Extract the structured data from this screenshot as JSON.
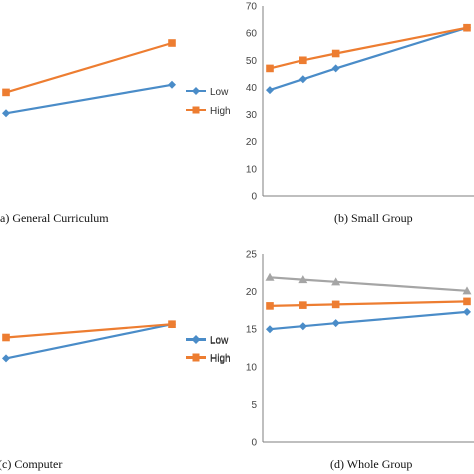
{
  "colors": {
    "low": "#4a8cc8",
    "high": "#ed7d31",
    "gray": "#a5a5a5",
    "axis": "#7f7f7f"
  },
  "chart_data": [
    {
      "id": "a",
      "type": "line",
      "caption": "(a)  General Curriculum",
      "x": [
        0,
        1
      ],
      "series": [
        {
          "key": "low",
          "name": "",
          "marker": "diamond",
          "values": [
            43,
            58
          ]
        },
        {
          "key": "high",
          "name": "",
          "marker": "square",
          "values": [
            54,
            80
          ]
        }
      ],
      "ylim": [
        0,
        100
      ],
      "legend": {
        "placement": "right",
        "entries": [
          "Low",
          "High"
        ]
      }
    },
    {
      "id": "b",
      "type": "line",
      "caption": "(b)  Small Group",
      "x": [
        1,
        2,
        3,
        7
      ],
      "series": [
        {
          "key": "low",
          "name": "Low",
          "marker": "diamond",
          "values": [
            39,
            43,
            47,
            62
          ]
        },
        {
          "key": "high",
          "name": "High",
          "marker": "square",
          "values": [
            47,
            50,
            52.5,
            62
          ]
        }
      ],
      "ylim": [
        0,
        70
      ],
      "yticks": [
        "0",
        "10",
        "20",
        "30",
        "40",
        "50",
        "60",
        "70"
      ]
    },
    {
      "id": "c",
      "type": "line",
      "caption": "(c)  Computer",
      "x": [
        0,
        1
      ],
      "series": [
        {
          "key": "low",
          "name": "",
          "marker": "diamond",
          "values": [
            44,
            62
          ]
        },
        {
          "key": "high",
          "name": "",
          "marker": "square",
          "values": [
            55,
            62
          ]
        }
      ],
      "ylim": [
        0,
        100
      ],
      "legend": {
        "placement": "right",
        "entries": [
          "Low",
          "High"
        ]
      }
    },
    {
      "id": "d",
      "type": "line",
      "caption": "(d)  Whole Group",
      "x": [
        1,
        2,
        3,
        7
      ],
      "series": [
        {
          "key": "gray",
          "name": "",
          "marker": "triangle",
          "values": [
            21.9,
            21.6,
            21.3,
            20.1
          ]
        },
        {
          "key": "high",
          "name": "High",
          "marker": "square",
          "values": [
            18.1,
            18.2,
            18.3,
            18.7
          ]
        },
        {
          "key": "low",
          "name": "Low",
          "marker": "diamond",
          "values": [
            15.0,
            15.4,
            15.8,
            17.3
          ]
        }
      ],
      "ylim": [
        0,
        25
      ],
      "yticks": [
        "0",
        "5",
        "10",
        "15",
        "20",
        "25"
      ]
    }
  ]
}
